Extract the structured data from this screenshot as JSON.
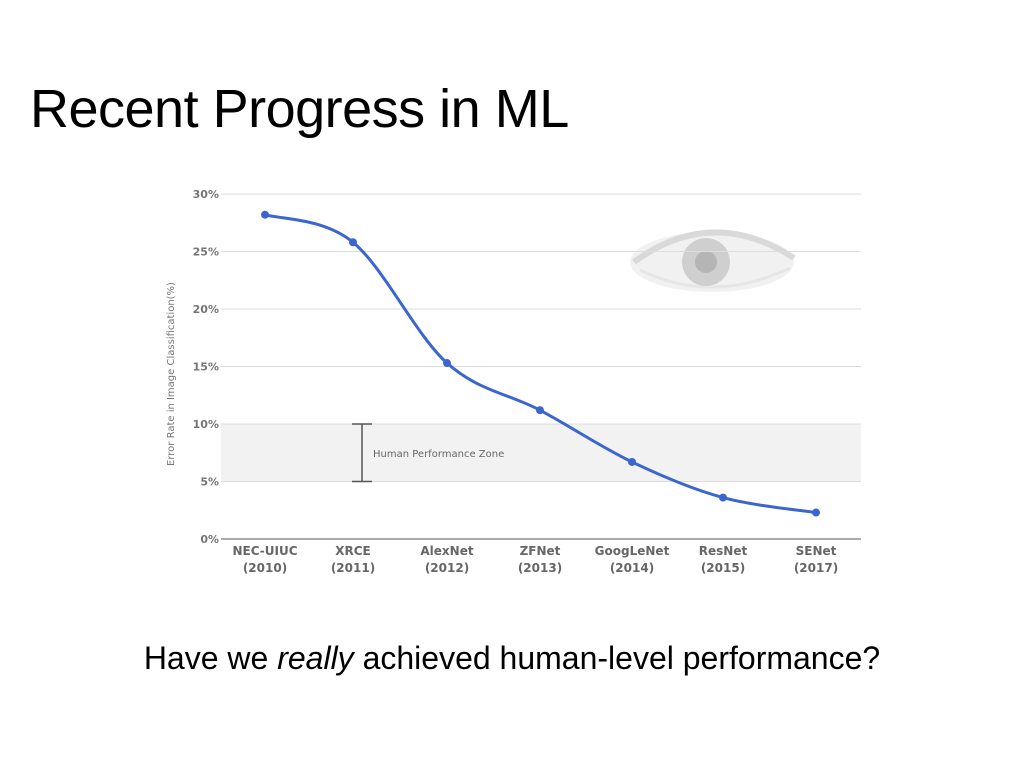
{
  "slide": {
    "title": "Recent Progress in ML",
    "question_pre": "Have we ",
    "question_em": "really",
    "question_post": " achieved human-level performance?"
  },
  "chart_data": {
    "type": "line",
    "categories": [
      [
        "NEC-UIUC",
        "(2010)"
      ],
      [
        "XRCE",
        "(2011)"
      ],
      [
        "AlexNet",
        "(2012)"
      ],
      [
        "ZFNet",
        "(2013)"
      ],
      [
        "GoogLeNet",
        "(2014)"
      ],
      [
        "ResNet",
        "(2015)"
      ],
      [
        "SENet",
        "(2017)"
      ]
    ],
    "values": [
      28.2,
      25.8,
      15.3,
      11.2,
      6.7,
      3.6,
      2.3
    ],
    "ylabel": "Error Rate in Image Classification(%)",
    "yticks": [
      "0%",
      "5%",
      "10%",
      "15%",
      "20%",
      "25%",
      "30%"
    ],
    "ylim": [
      0,
      30
    ],
    "grid": true,
    "annotation": {
      "label": "Human Performance Zone",
      "range": [
        5,
        10
      ]
    },
    "colors": {
      "line": "#3b66cf",
      "grid": "#dddddd",
      "zone": "#f2f2f2"
    },
    "decoration": "eye-image"
  }
}
